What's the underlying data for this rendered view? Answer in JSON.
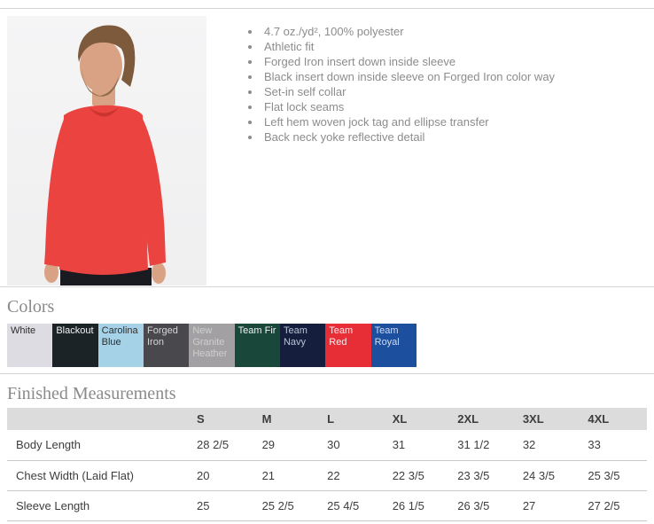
{
  "features": {
    "items": [
      "4.7 oz./yd², 100% polyester",
      "Athletic fit",
      "Forged Iron insert down inside sleeve",
      "Black insert down inside sleeve on Forged Iron color way",
      "Set-in self collar",
      "Flat lock seams",
      "Left hem woven jock tag and ellipse transfer",
      "Back neck yoke reflective detail"
    ]
  },
  "product_image": {
    "description": "Model wearing red long sleeve performance shirt"
  },
  "colors_section": {
    "heading": "Colors",
    "swatches": [
      {
        "name": "White",
        "bg": "#dcdce2",
        "text": "#2e2e2e"
      },
      {
        "name": "Blackout",
        "bg": "#1b2327",
        "text": "#f2f2f2"
      },
      {
        "name": "Carolina Blue",
        "bg": "#a6d2e8",
        "text": "#2e2e2e"
      },
      {
        "name": "Forged Iron",
        "bg": "#49484c",
        "text": "#d6d6d6"
      },
      {
        "name": "New Granite Heather",
        "bg": "#a2a0a3",
        "text": "#cfcfcf"
      },
      {
        "name": "Team Fir",
        "bg": "#19483a",
        "text": "#f2f2f2"
      },
      {
        "name": "Team Navy",
        "bg": "#151f3d",
        "text": "#b9c4d6"
      },
      {
        "name": "Team Red",
        "bg": "#e72e36",
        "text": "#fbeaea"
      },
      {
        "name": "Team Royal",
        "bg": "#1c4f9e",
        "text": "#d3dcee"
      }
    ]
  },
  "measurements": {
    "heading": "Finished Measurements",
    "columns": [
      "S",
      "M",
      "L",
      "XL",
      "2XL",
      "3XL",
      "4XL"
    ],
    "rows": [
      {
        "label": "Body Length",
        "values": [
          "28 2/5",
          "29",
          "30",
          "31",
          "31 1/2",
          "32",
          "33"
        ]
      },
      {
        "label": "Chest Width (Laid Flat)",
        "values": [
          "20",
          "21",
          "22",
          "22 3/5",
          "23 3/5",
          "24 3/5",
          "25 3/5"
        ]
      },
      {
        "label": "Sleeve Length",
        "values": [
          "25",
          "25 2/5",
          "25 4/5",
          "26 1/5",
          "26 3/5",
          "27",
          "27 2/5"
        ]
      }
    ]
  }
}
